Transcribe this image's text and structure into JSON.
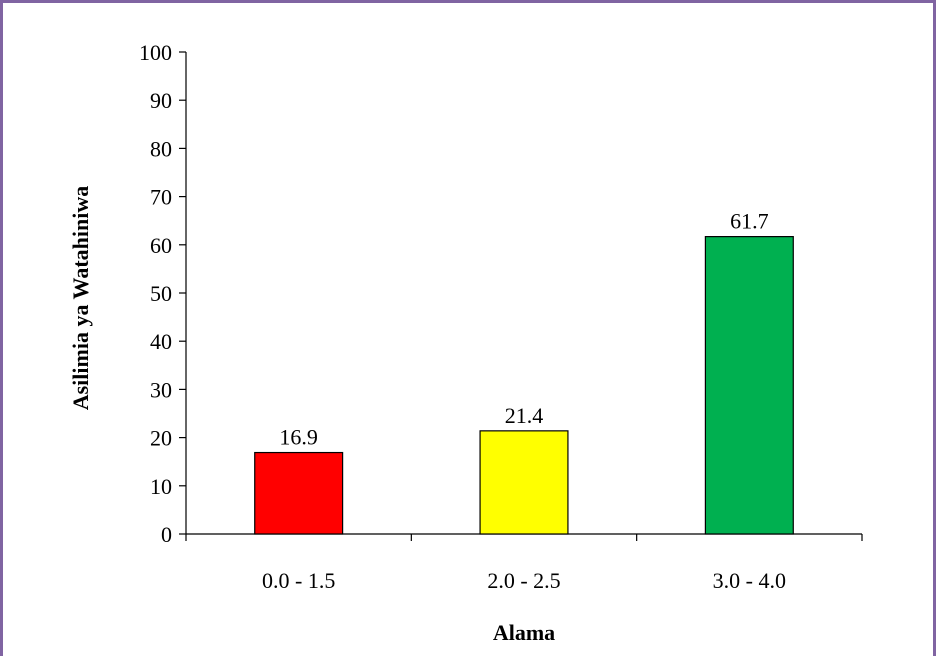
{
  "chart_data": {
    "type": "bar",
    "categories": [
      "0.0 - 1.5",
      "2.0 - 2.5",
      "3.0 - 4.0"
    ],
    "values": [
      16.9,
      21.4,
      61.7
    ],
    "data_labels": [
      "16.9",
      "21.4",
      "61.7"
    ],
    "bar_colors": [
      "#FF0000",
      "#FFFF00",
      "#00B050"
    ],
    "title": "",
    "xlabel": "Alama",
    "ylabel": "Asilimia ya Watahiniwa",
    "ylim": [
      0,
      100
    ],
    "yticks": [
      0,
      10,
      20,
      30,
      40,
      50,
      60,
      70,
      80,
      90,
      100
    ],
    "grid": false,
    "legend": "none"
  },
  "style": {
    "border_color": "#8064A2",
    "bar_outline": "#000000"
  }
}
